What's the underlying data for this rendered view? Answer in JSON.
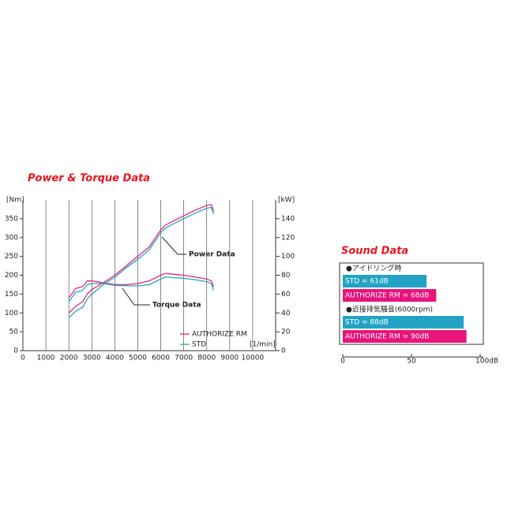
{
  "chart_data": [
    {
      "type": "line",
      "title": "Power & Torque Data",
      "x": [
        2000,
        2300,
        2600,
        2800,
        3000,
        3500,
        4000,
        4500,
        5000,
        5500,
        6000,
        6200,
        6500,
        7000,
        7500,
        8000,
        8200,
        8300
      ],
      "xlim": [
        0,
        11000
      ],
      "xticks": [
        0,
        1000,
        2000,
        3000,
        4000,
        5000,
        6000,
        7000,
        8000,
        9000,
        10000
      ],
      "xlabel": "[1/min]",
      "ylim": [
        0,
        400
      ],
      "yticks": [
        0,
        50,
        100,
        150,
        200,
        250,
        300,
        350
      ],
      "ylabel": "[Nm]",
      "y2lim": [
        0,
        160
      ],
      "y2ticks": [
        0,
        20,
        40,
        60,
        80,
        100,
        120,
        140
      ],
      "y2label": "[kW]",
      "grid": true,
      "annotations": [
        "Power Data",
        "Torque Data"
      ],
      "series": [
        {
          "name": "AUTHORIZE RM",
          "color": "#e0287a",
          "power": [
            40,
            47,
            52,
            60,
            65,
            72,
            80,
            90,
            100,
            110,
            128,
            133,
            137,
            143,
            149,
            154,
            155,
            148
          ],
          "torque": [
            140,
            165,
            170,
            185,
            185,
            180,
            175,
            175,
            178,
            185,
            200,
            205,
            203,
            200,
            195,
            190,
            185,
            170
          ]
        },
        {
          "name": "STD",
          "color": "#22a8c8",
          "power": [
            35,
            42,
            46,
            55,
            60,
            70,
            78,
            88,
            97,
            107,
            125,
            130,
            134,
            140,
            146,
            151,
            152,
            145
          ],
          "torque": [
            130,
            155,
            160,
            175,
            178,
            178,
            173,
            172,
            172,
            175,
            190,
            195,
            194,
            192,
            188,
            183,
            178,
            160
          ]
        }
      ]
    },
    {
      "type": "hbar",
      "title": "Sound Data",
      "xlim": [
        0,
        100
      ],
      "xticks": [
        0,
        50,
        {
          "value": 100,
          "label": "100dB"
        }
      ],
      "colors": [
        "#23a3c4",
        "#e8147c"
      ],
      "groups": [
        {
          "label": "●アイドリング時",
          "values": [
            61,
            68
          ],
          "value_labels": [
            "STD = 61dB",
            "AUTHORIZE RM = 68dB"
          ]
        },
        {
          "label": "●近接排気騒音(6000rpm)",
          "values": [
            88,
            90
          ],
          "value_labels": [
            "STD = 88dB",
            "AUTHORIZE RM = 90dB"
          ]
        }
      ]
    }
  ]
}
